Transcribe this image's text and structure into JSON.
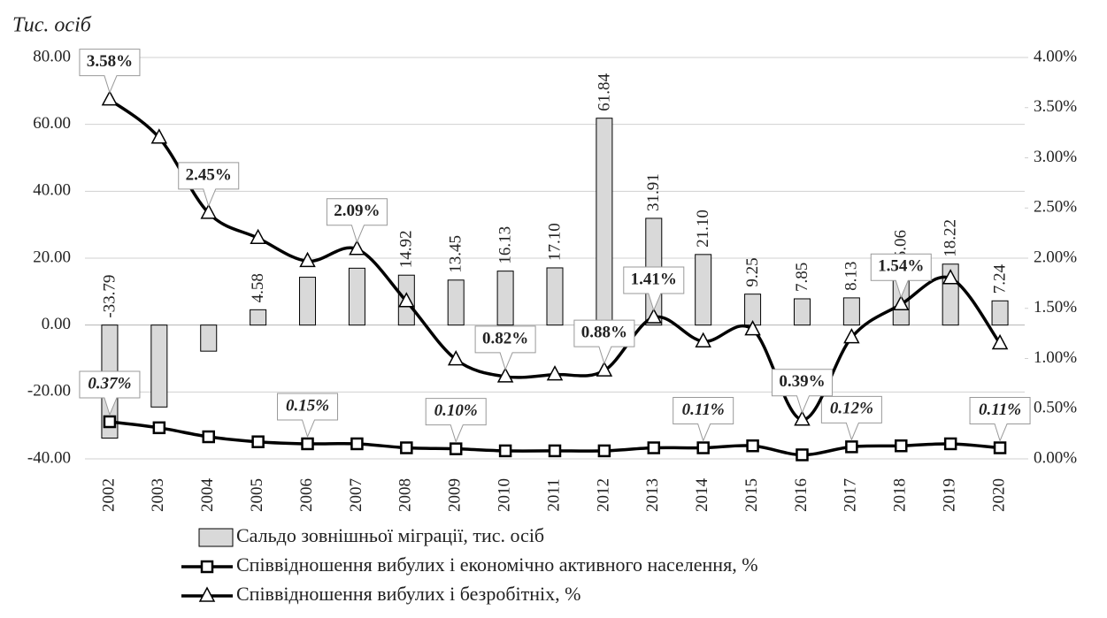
{
  "chart_data": {
    "type": "combo",
    "y_axis_label": "Тис. осіб",
    "categories": [
      "2002",
      "2003",
      "2004",
      "2005",
      "2006",
      "2007",
      "2008",
      "2009",
      "2010",
      "2011",
      "2012",
      "2013",
      "2014",
      "2015",
      "2016",
      "2017",
      "2018",
      "2019",
      "2020"
    ],
    "ylim": [
      -40,
      80
    ],
    "yticks": [
      {
        "value": -40,
        "label": "-40.00"
      },
      {
        "value": -20,
        "label": "-20.00"
      },
      {
        "value": 0,
        "label": "0.00"
      },
      {
        "value": 20,
        "label": "20.00"
      },
      {
        "value": 40,
        "label": "40.00"
      },
      {
        "value": 60,
        "label": "60.00"
      },
      {
        "value": 80,
        "label": "80.00"
      }
    ],
    "y2lim": [
      0,
      4
    ],
    "y2ticks": [
      {
        "value": 0,
        "label": "0.00%"
      },
      {
        "value": 0.5,
        "label": "0.50%"
      },
      {
        "value": 1,
        "label": "1.00%"
      },
      {
        "value": 1.5,
        "label": "1.50%"
      },
      {
        "value": 2,
        "label": "2.00%"
      },
      {
        "value": 2.5,
        "label": "2.50%"
      },
      {
        "value": 3,
        "label": "3.00%"
      },
      {
        "value": 3.5,
        "label": "3.50%"
      },
      {
        "value": 4,
        "label": "4.00%"
      }
    ],
    "grid": true,
    "series": [
      {
        "name": "Сальдо зовнішньої міграції, тис. осіб",
        "type": "bar",
        "color": "#d9d9d9",
        "values": [
          -33.79,
          -24.5,
          -7.8,
          4.58,
          14.3,
          17.0,
          14.92,
          13.45,
          16.13,
          17.1,
          61.84,
          31.91,
          21.1,
          9.25,
          7.85,
          8.13,
          15.06,
          18.22,
          7.24
        ],
        "value_labels": [
          "-33.79",
          null,
          null,
          "4.58",
          null,
          null,
          "14.92",
          "13.45",
          "16.13",
          "17.10",
          "61.84",
          "31.91",
          "21.10",
          "9.25",
          "7.85",
          "8.13",
          "15.06",
          "18.22",
          "7.24"
        ]
      },
      {
        "name": "Співвідношення вибулих і економічно активного населення, %",
        "type": "line",
        "marker": "square",
        "axis": "y2",
        "color": "#000000",
        "values": [
          0.37,
          0.31,
          0.22,
          0.17,
          0.15,
          0.15,
          0.11,
          0.1,
          0.08,
          0.08,
          0.08,
          0.11,
          0.11,
          0.13,
          0.04,
          0.12,
          0.13,
          0.15,
          0.11
        ],
        "value_labels": [
          "0.37%",
          null,
          null,
          null,
          "0.15%",
          null,
          null,
          "0.10%",
          null,
          null,
          null,
          null,
          "0.11%",
          null,
          null,
          "0.12%",
          null,
          null,
          "0.11%"
        ]
      },
      {
        "name": "Співвідношення вибулих і безробітніх, %",
        "type": "line",
        "marker": "triangle",
        "axis": "y2",
        "color": "#000000",
        "values": [
          3.58,
          3.2,
          2.45,
          2.2,
          1.97,
          2.09,
          1.57,
          0.99,
          0.82,
          0.84,
          0.88,
          1.41,
          1.17,
          1.29,
          0.39,
          1.21,
          1.54,
          1.8,
          1.15
        ],
        "value_labels": [
          "3.58%",
          null,
          "2.45%",
          null,
          null,
          "2.09%",
          null,
          null,
          "0.82%",
          null,
          "0.88%",
          "1.41%",
          null,
          null,
          "0.39%",
          null,
          "1.54%",
          null,
          null
        ]
      }
    ]
  }
}
